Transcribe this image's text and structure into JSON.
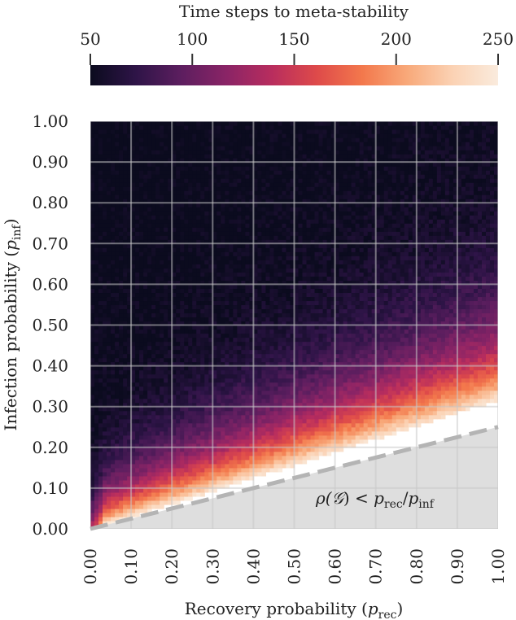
{
  "chart_data": {
    "type": "heatmap",
    "title": "",
    "xlabel": "Recovery probability (p_rec)",
    "xlabel_main": "Recovery probability (",
    "xlabel_var": "p",
    "xlabel_sub": "rec",
    "xlabel_close": ")",
    "ylabel": "Infection probability (p_inf)",
    "ylabel_main": "Infection probability (",
    "ylabel_var": "p",
    "ylabel_sub": "inf",
    "ylabel_close": ")",
    "xlim": [
      0,
      1
    ],
    "ylim": [
      0,
      1
    ],
    "x_ticks": [
      "0.00",
      "0.10",
      "0.20",
      "0.30",
      "0.40",
      "0.50",
      "0.60",
      "0.70",
      "0.80",
      "0.90",
      "1.00"
    ],
    "y_ticks": [
      "0.00",
      "0.10",
      "0.20",
      "0.30",
      "0.40",
      "0.50",
      "0.60",
      "0.70",
      "0.80",
      "0.90",
      "1.00"
    ],
    "grid": true,
    "colorbar": {
      "label": "Time steps to meta-stability",
      "ticks": [
        "50",
        "100",
        "150",
        "200",
        "250"
      ],
      "range": [
        50,
        250
      ],
      "colors": [
        "#0b0b1e",
        "#2e1447",
        "#5c1e5f",
        "#8a2466",
        "#b82d5e",
        "#de4a4a",
        "#f3784c",
        "#f8a97a",
        "#fbd2b4",
        "#faebdd"
      ]
    },
    "threshold_line": {
      "x": [
        0,
        1
      ],
      "y": [
        0,
        0.25
      ],
      "style": "dashed"
    },
    "stable_boundary": {
      "x": [
        0,
        1
      ],
      "y": [
        0,
        0.32
      ]
    },
    "region_label": {
      "prefix": "ρ(",
      "script": "𝒢",
      "relation": ") < ",
      "p1": "p",
      "p1_sub": "rec",
      "slash": "/",
      "p2": "p",
      "p2_sub": "inf"
    },
    "colors": {
      "region_fill": "#dedede",
      "threshold": "#b4b4b4",
      "grid": "#c9c9c9"
    }
  }
}
